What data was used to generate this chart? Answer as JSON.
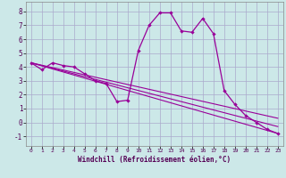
{
  "title": "",
  "xlabel": "Windchill (Refroidissement éolien,°C)",
  "ylabel": "",
  "background_color": "#cce8e8",
  "grid_color": "#aaaacc",
  "line_color": "#990099",
  "xlim": [
    -0.5,
    23.5
  ],
  "ylim": [
    -1.7,
    8.7
  ],
  "xticks": [
    0,
    1,
    2,
    3,
    4,
    5,
    6,
    7,
    8,
    9,
    10,
    11,
    12,
    13,
    14,
    15,
    16,
    17,
    18,
    19,
    20,
    21,
    22,
    23
  ],
  "yticks": [
    -1,
    0,
    1,
    2,
    3,
    4,
    5,
    6,
    7,
    8
  ],
  "series": [
    {
      "x": [
        0,
        1,
        2,
        3,
        4,
        5,
        6,
        7,
        8,
        9,
        10,
        11,
        12,
        13,
        14,
        15,
        16,
        17,
        18,
        19,
        20,
        21,
        22,
        23
      ],
      "y": [
        4.3,
        3.8,
        4.3,
        4.1,
        4.0,
        3.5,
        3.0,
        2.8,
        1.5,
        1.6,
        5.2,
        7.0,
        7.9,
        7.9,
        6.6,
        6.5,
        7.5,
        6.4,
        2.3,
        1.3,
        0.5,
        0.0,
        -0.5,
        -0.8
      ]
    },
    {
      "x": [
        0,
        23
      ],
      "y": [
        4.3,
        -0.8
      ]
    },
    {
      "x": [
        0,
        23
      ],
      "y": [
        4.3,
        -0.3
      ]
    },
    {
      "x": [
        0,
        23
      ],
      "y": [
        4.3,
        0.3
      ]
    }
  ]
}
